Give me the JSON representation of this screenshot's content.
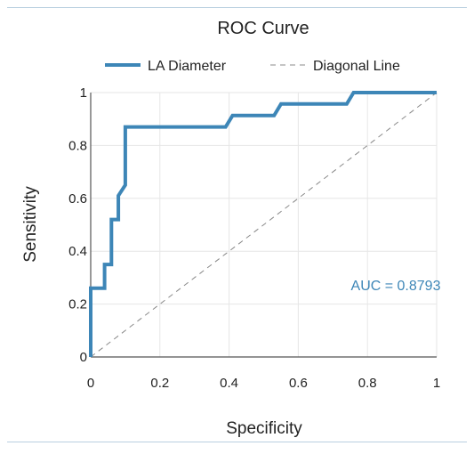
{
  "chart_data": {
    "type": "line",
    "title": "ROC Curve",
    "xlabel": "Specificity",
    "ylabel": "Sensitivity",
    "xlim": [
      0,
      1
    ],
    "ylim": [
      0,
      1
    ],
    "x_ticks": [
      "0",
      "0.2",
      "0.4",
      "0.6",
      "0.8",
      "1"
    ],
    "y_ticks": [
      "0",
      "0.2",
      "0.4",
      "0.6",
      "0.8",
      "1"
    ],
    "grid": true,
    "legend_position": "top",
    "annotation": "AUC = 0.8793",
    "series": [
      {
        "name": "LA Diameter",
        "color": "#3d86b7",
        "style": "solid",
        "x": [
          0,
          0,
          0.04,
          0.04,
          0.06,
          0.06,
          0.08,
          0.08,
          0.1,
          0.1,
          0.39,
          0.41,
          0.53,
          0.55,
          0.74,
          0.76,
          1.0
        ],
        "y": [
          0,
          0.26,
          0.26,
          0.35,
          0.35,
          0.52,
          0.52,
          0.61,
          0.65,
          0.87,
          0.87,
          0.913,
          0.913,
          0.957,
          0.957,
          1.0,
          1.0
        ]
      },
      {
        "name": "Diagonal Line",
        "color": "#888888",
        "style": "dashed",
        "x": [
          0,
          1
        ],
        "y": [
          0,
          1
        ]
      }
    ]
  }
}
